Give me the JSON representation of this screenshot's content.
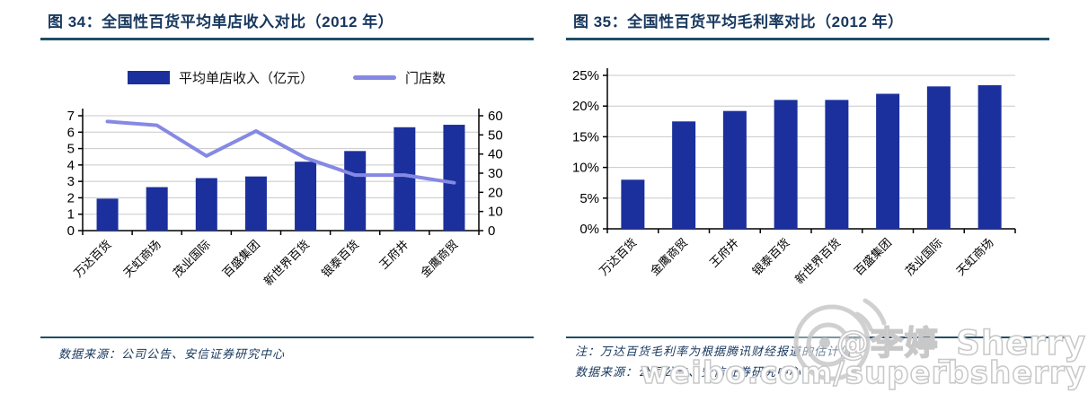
{
  "colors": {
    "bar": "#1b309c",
    "line": "#8689e3",
    "grid": "#c8c8c8",
    "axis": "#000000",
    "title_navy": "#17375e",
    "rule_navy": "#1f4e66"
  },
  "watermark": {
    "handle": "@李婷_Sherry",
    "url": "weibo.com/superbsherry",
    "logo": "weibo-eye-logo"
  },
  "chart_data": [
    {
      "type": "bar",
      "combo": "bar+line-dual-axis",
      "title": "图 34：全国性百货平均单店收入对比（2012 年）",
      "categories": [
        "万达百货",
        "天虹商场",
        "茂业国际",
        "百盛集团",
        "新世界百货",
        "银泰百货",
        "王府井",
        "金鹰商贸"
      ],
      "series": [
        {
          "name": "平均单店收入（亿元）",
          "render": "bar",
          "axis": "left",
          "values": [
            1.95,
            2.65,
            3.2,
            3.3,
            4.2,
            4.85,
            6.3,
            6.45
          ]
        },
        {
          "name": "门店数",
          "render": "line",
          "axis": "right",
          "values": [
            57,
            55,
            39,
            52,
            38,
            29,
            29,
            25
          ]
        }
      ],
      "left_axis": {
        "min": 0,
        "max": 7,
        "step": 1
      },
      "right_axis": {
        "min": 0,
        "max": 60,
        "step": 10
      },
      "legend_position": "top",
      "grid": true,
      "source": "数据来源：公司公告、安信证券研究中心"
    },
    {
      "type": "bar",
      "title": "图 35：全国性百货平均毛利率对比（2012 年）",
      "categories": [
        "万达百货",
        "金鹰商贸",
        "王府井",
        "银泰百货",
        "新世界百货",
        "百盛集团",
        "茂业国际",
        "天虹商场"
      ],
      "values": [
        8.0,
        17.5,
        19.2,
        21.0,
        21.0,
        22.0,
        23.2,
        23.4
      ],
      "y_axis": {
        "min": 0,
        "max": 25,
        "step": 5,
        "unit": "%"
      },
      "legend_position": "none",
      "grid": true,
      "note": "注：万达百货毛利率为根据腾讯财经报道的估计值",
      "source": "数据来源：公司公告、安信证券研究中心"
    }
  ]
}
